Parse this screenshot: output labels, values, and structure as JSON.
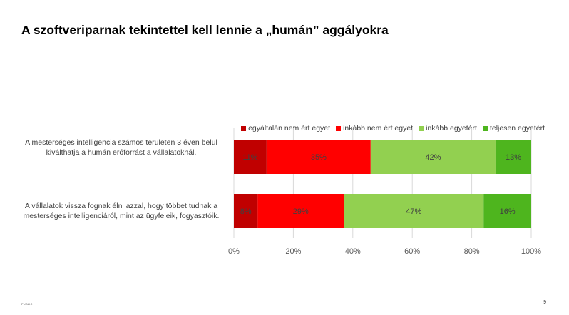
{
  "slide": {
    "title": "A szoftveriparnak tekintettel kell lennie a „humán” aggályokra",
    "footer_left": "PUBLIC",
    "page_number": "9"
  },
  "chart_data": {
    "type": "bar",
    "orientation": "horizontal",
    "stacked": true,
    "categories": [
      "A mesterséges intelligencia számos területen 3 éven belül kiválthatja a humán erőforrást a vállalatoknál.",
      "A vállalatok vissza fognak élni azzal, hogy többet tudnak a mesterséges intelligenciáról, mint az ügyfeleik, fogyasztóik."
    ],
    "category_lines": [
      [
        "A mesterséges intelligencia számos területen 3 éven belül",
        "kiválthatja a humán erőforrást a vállalatoknál."
      ],
      [
        "A vállalatok vissza fognak élni azzal, hogy többet tudnak a",
        "mesterséges intelligenciáról, mint az ügyfeleik, fogyasztóik."
      ]
    ],
    "series": [
      {
        "name": "egyáltalán nem ért egyet",
        "color": "#c00000",
        "values": [
          11,
          8
        ],
        "labels": [
          "11%",
          "8%"
        ]
      },
      {
        "name": "inkább nem ért egyet",
        "color": "#ff0000",
        "values": [
          35,
          29
        ],
        "labels": [
          "35%",
          "29%"
        ]
      },
      {
        "name": "inkább egyetért",
        "color": "#92d050",
        "values": [
          42,
          47
        ],
        "labels": [
          "42%",
          "47%"
        ]
      },
      {
        "name": "teljesen egyetért",
        "color": "#4eb51e",
        "values": [
          13,
          16
        ],
        "labels": [
          "13%",
          "16%"
        ]
      }
    ],
    "xlim": [
      0,
      100
    ],
    "xticks": [
      "0%",
      "20%",
      "40%",
      "60%",
      "80%",
      "100%"
    ],
    "grid": true,
    "legend_position": "top-right"
  }
}
